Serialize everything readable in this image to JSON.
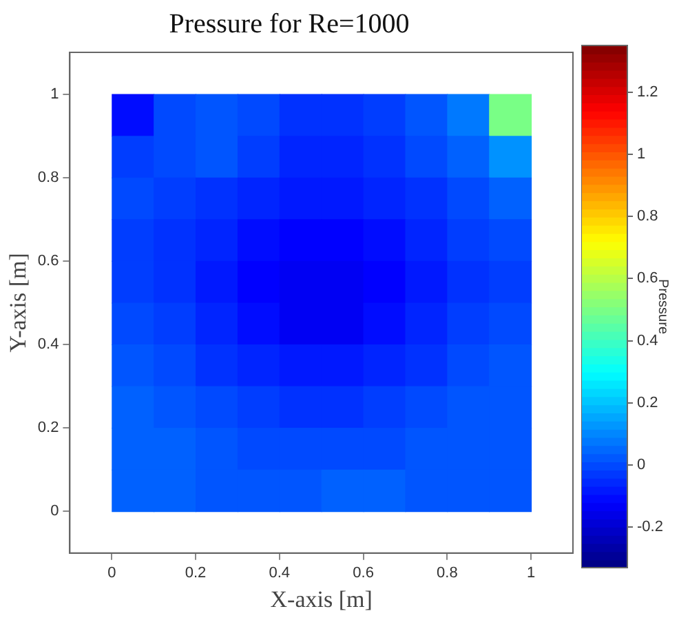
{
  "chart_data": {
    "type": "heatmap",
    "title": "Pressure for Re=1000",
    "xlabel": "X-axis [m]",
    "ylabel": "Y-axis [m]",
    "clabel": "Pressure",
    "x": [
      0.05,
      0.15,
      0.25,
      0.35,
      0.45,
      0.55,
      0.65,
      0.75,
      0.85,
      0.95
    ],
    "y": [
      0.95,
      0.85,
      0.75,
      0.65,
      0.55,
      0.45,
      0.35,
      0.25,
      0.15,
      0.05
    ],
    "cells": [
      [
        -0.1,
        0.0,
        0.02,
        0.0,
        -0.04,
        -0.04,
        -0.02,
        0.02,
        0.08,
        0.5
      ],
      [
        -0.02,
        0.0,
        0.02,
        -0.02,
        -0.06,
        -0.06,
        -0.04,
        0.0,
        0.04,
        0.12
      ],
      [
        0.0,
        -0.02,
        -0.04,
        -0.06,
        -0.08,
        -0.08,
        -0.06,
        -0.04,
        0.0,
        0.04
      ],
      [
        -0.02,
        -0.04,
        -0.06,
        -0.1,
        -0.12,
        -0.12,
        -0.1,
        -0.06,
        -0.02,
        0.0
      ],
      [
        -0.02,
        -0.04,
        -0.08,
        -0.12,
        -0.14,
        -0.14,
        -0.12,
        -0.08,
        -0.04,
        -0.02
      ],
      [
        0.0,
        -0.02,
        -0.06,
        -0.1,
        -0.14,
        -0.14,
        -0.1,
        -0.06,
        -0.02,
        0.0
      ],
      [
        0.02,
        0.0,
        -0.04,
        -0.06,
        -0.08,
        -0.08,
        -0.06,
        -0.04,
        0.0,
        0.02
      ],
      [
        0.04,
        0.02,
        0.0,
        -0.02,
        -0.04,
        -0.04,
        -0.02,
        0.0,
        0.02,
        0.02
      ],
      [
        0.04,
        0.04,
        0.02,
        0.0,
        0.0,
        0.0,
        0.0,
        0.02,
        0.02,
        0.02
      ],
      [
        0.04,
        0.04,
        0.02,
        0.02,
        0.02,
        0.04,
        0.04,
        0.02,
        0.02,
        0.02
      ]
    ],
    "xlim": [
      -0.1,
      1.1
    ],
    "ylim": [
      -0.1,
      1.1
    ],
    "xticks": [
      0,
      0.2,
      0.4,
      0.6,
      0.8,
      1
    ],
    "yticks": [
      0,
      0.2,
      0.4,
      0.6,
      0.8,
      1
    ],
    "clim": [
      -0.33,
      1.35
    ],
    "cticks": [
      -0.2,
      0,
      0.2,
      0.4,
      0.6,
      0.8,
      1,
      1.2
    ]
  }
}
